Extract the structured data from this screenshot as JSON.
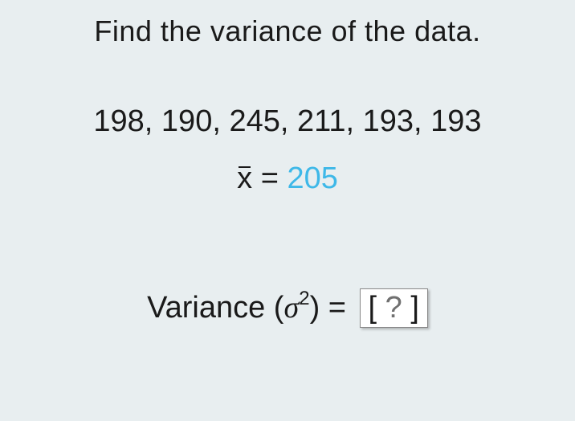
{
  "title": "Find the variance of the data.",
  "data_values": "198, 190, 245, 211, 193, 193",
  "mean": {
    "symbol": "x",
    "equals": " = ",
    "value": "205"
  },
  "variance": {
    "label": "Variance ",
    "open_paren": "(",
    "sigma": "σ",
    "exponent": "2",
    "close_paren": ")",
    "equals": " = ",
    "placeholder": " ? ",
    "bracket_left": "[",
    "bracket_right": "]"
  },
  "colors": {
    "background": "#e8eef0",
    "text": "#1a1a1a",
    "accent": "#3eb8e8",
    "box_bg": "#ffffff",
    "box_text": "#707070"
  },
  "typography": {
    "title_fontsize": 36,
    "body_fontsize": 38,
    "sup_fontsize": 24
  }
}
